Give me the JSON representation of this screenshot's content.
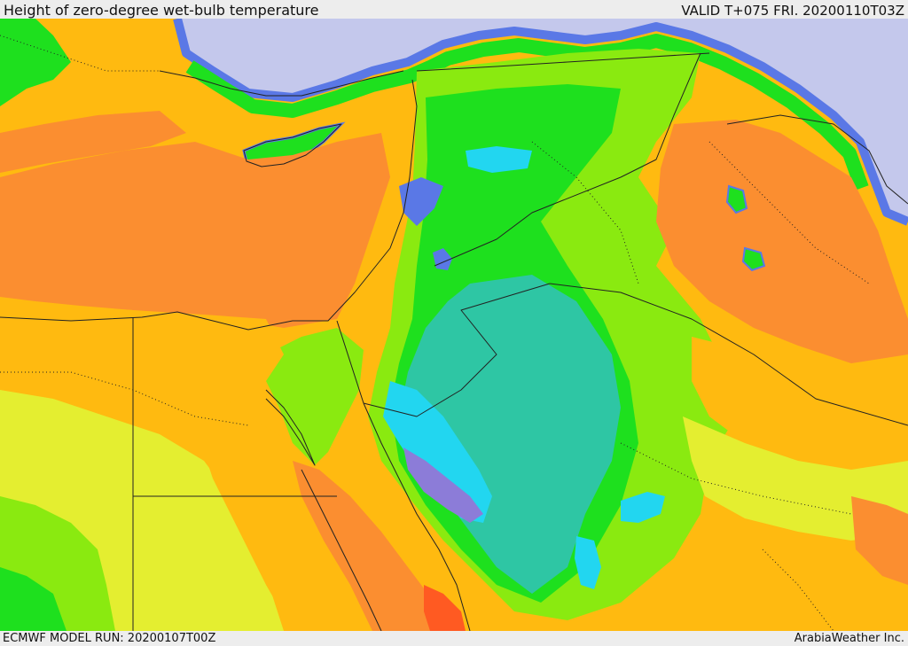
{
  "header": {
    "title": "Height of zero-degree wet-bulb temperature",
    "valid": "VALID T+075 FRI. 20200110T03Z"
  },
  "footer": {
    "model_run": "ECMWF MODEL RUN: 20200107T00Z",
    "credit": "ArabiaWeather Inc."
  },
  "map": {
    "palette": {
      "sea": "#c4c8ec",
      "coast_blue": "#5a78e6",
      "violet": "#8c7cd8",
      "cyan": "#22d6f0",
      "teal": "#2ec6a4",
      "green": "#1ee01e",
      "light_green": "#8aea10",
      "yellow": "#e4ee30",
      "amber": "#ffba10",
      "orange": "#fb8e30",
      "red_orange": "#ff5a22",
      "border": "#222222"
    }
  }
}
